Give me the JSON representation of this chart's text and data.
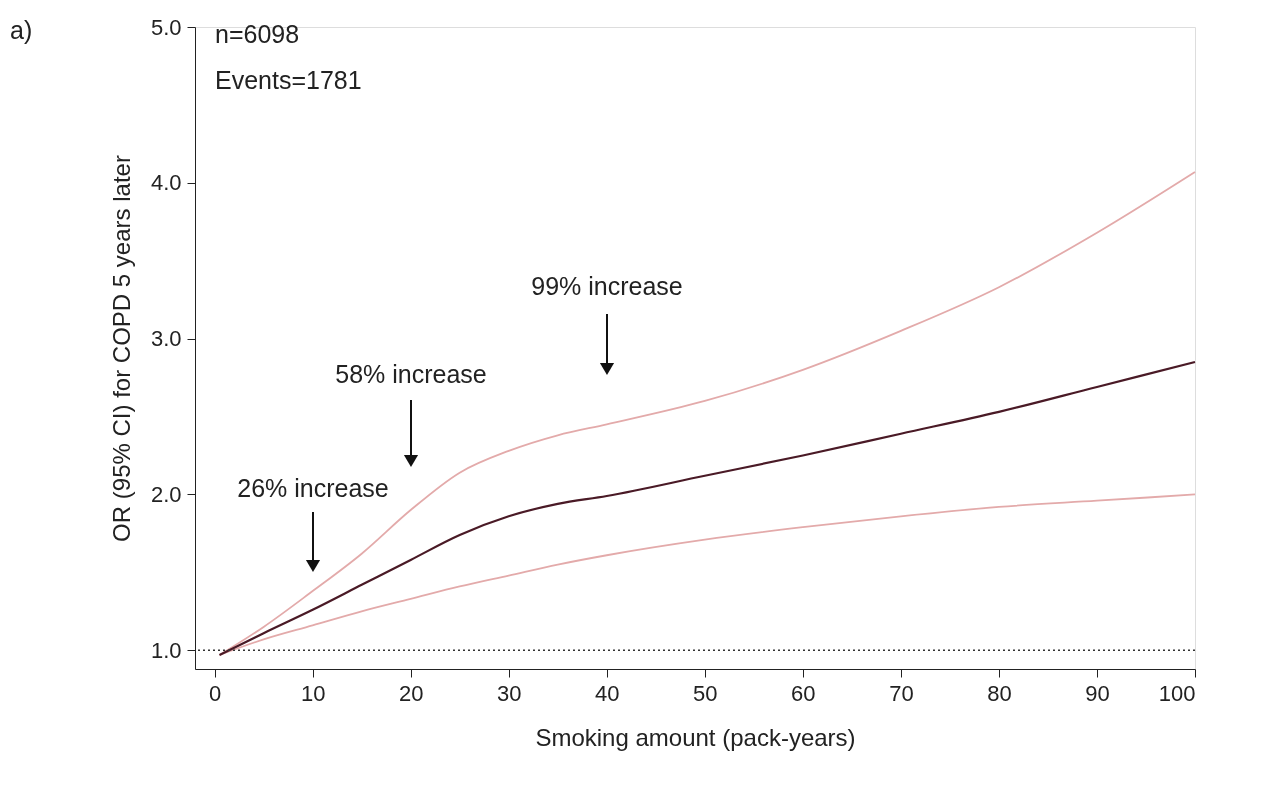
{
  "chart_data": {
    "type": "line",
    "xlabel": "Smoking amount (pack-years)",
    "ylabel": "OR (95% CI) for COPD 5 years later",
    "x": [
      0.5,
      5,
      10,
      15,
      20,
      25,
      30,
      35,
      40,
      50,
      60,
      70,
      80,
      90,
      100
    ],
    "series": [
      {
        "color": "#e3aaaa",
        "values": [
          0.97,
          1.07,
          1.16,
          1.25,
          1.33,
          1.41,
          1.48,
          1.55,
          1.61,
          1.71,
          1.79,
          1.86,
          1.92,
          1.96,
          2.0
        ]
      },
      {
        "color": "#e3aaaa",
        "values": [
          0.97,
          1.15,
          1.38,
          1.62,
          1.9,
          2.14,
          2.28,
          2.38,
          2.45,
          2.6,
          2.8,
          3.05,
          3.33,
          3.68,
          4.07
        ]
      },
      {
        "color": "#4a1a26",
        "values": [
          0.97,
          1.11,
          1.26,
          1.42,
          1.58,
          1.74,
          1.86,
          1.94,
          1.99,
          2.12,
          2.25,
          2.39,
          2.53,
          2.69,
          2.85
        ]
      }
    ],
    "xlim": [
      -2,
      100
    ],
    "xticks": [
      0,
      10,
      20,
      30,
      40,
      50,
      60,
      70,
      80,
      90,
      100
    ],
    "ylim": [
      0.88,
      5.0
    ],
    "yticks": [
      {
        "value": 1,
        "label": "1.0"
      },
      {
        "value": 2,
        "label": "2.0"
      },
      {
        "value": 3,
        "label": "3.0"
      },
      {
        "value": 4,
        "label": "4.0"
      },
      {
        "value": 5,
        "label": "5.0"
      }
    ],
    "ref_lines": [
      {
        "axis": "y",
        "value": 1,
        "color": "#333333",
        "line_style": "dotted"
      }
    ],
    "annotations": [
      "a)",
      "n=6098",
      "Events=1781",
      "26% increase",
      "58% increase",
      "99% increase"
    ],
    "grid": false,
    "line_style": "solid",
    "marker": "none"
  }
}
